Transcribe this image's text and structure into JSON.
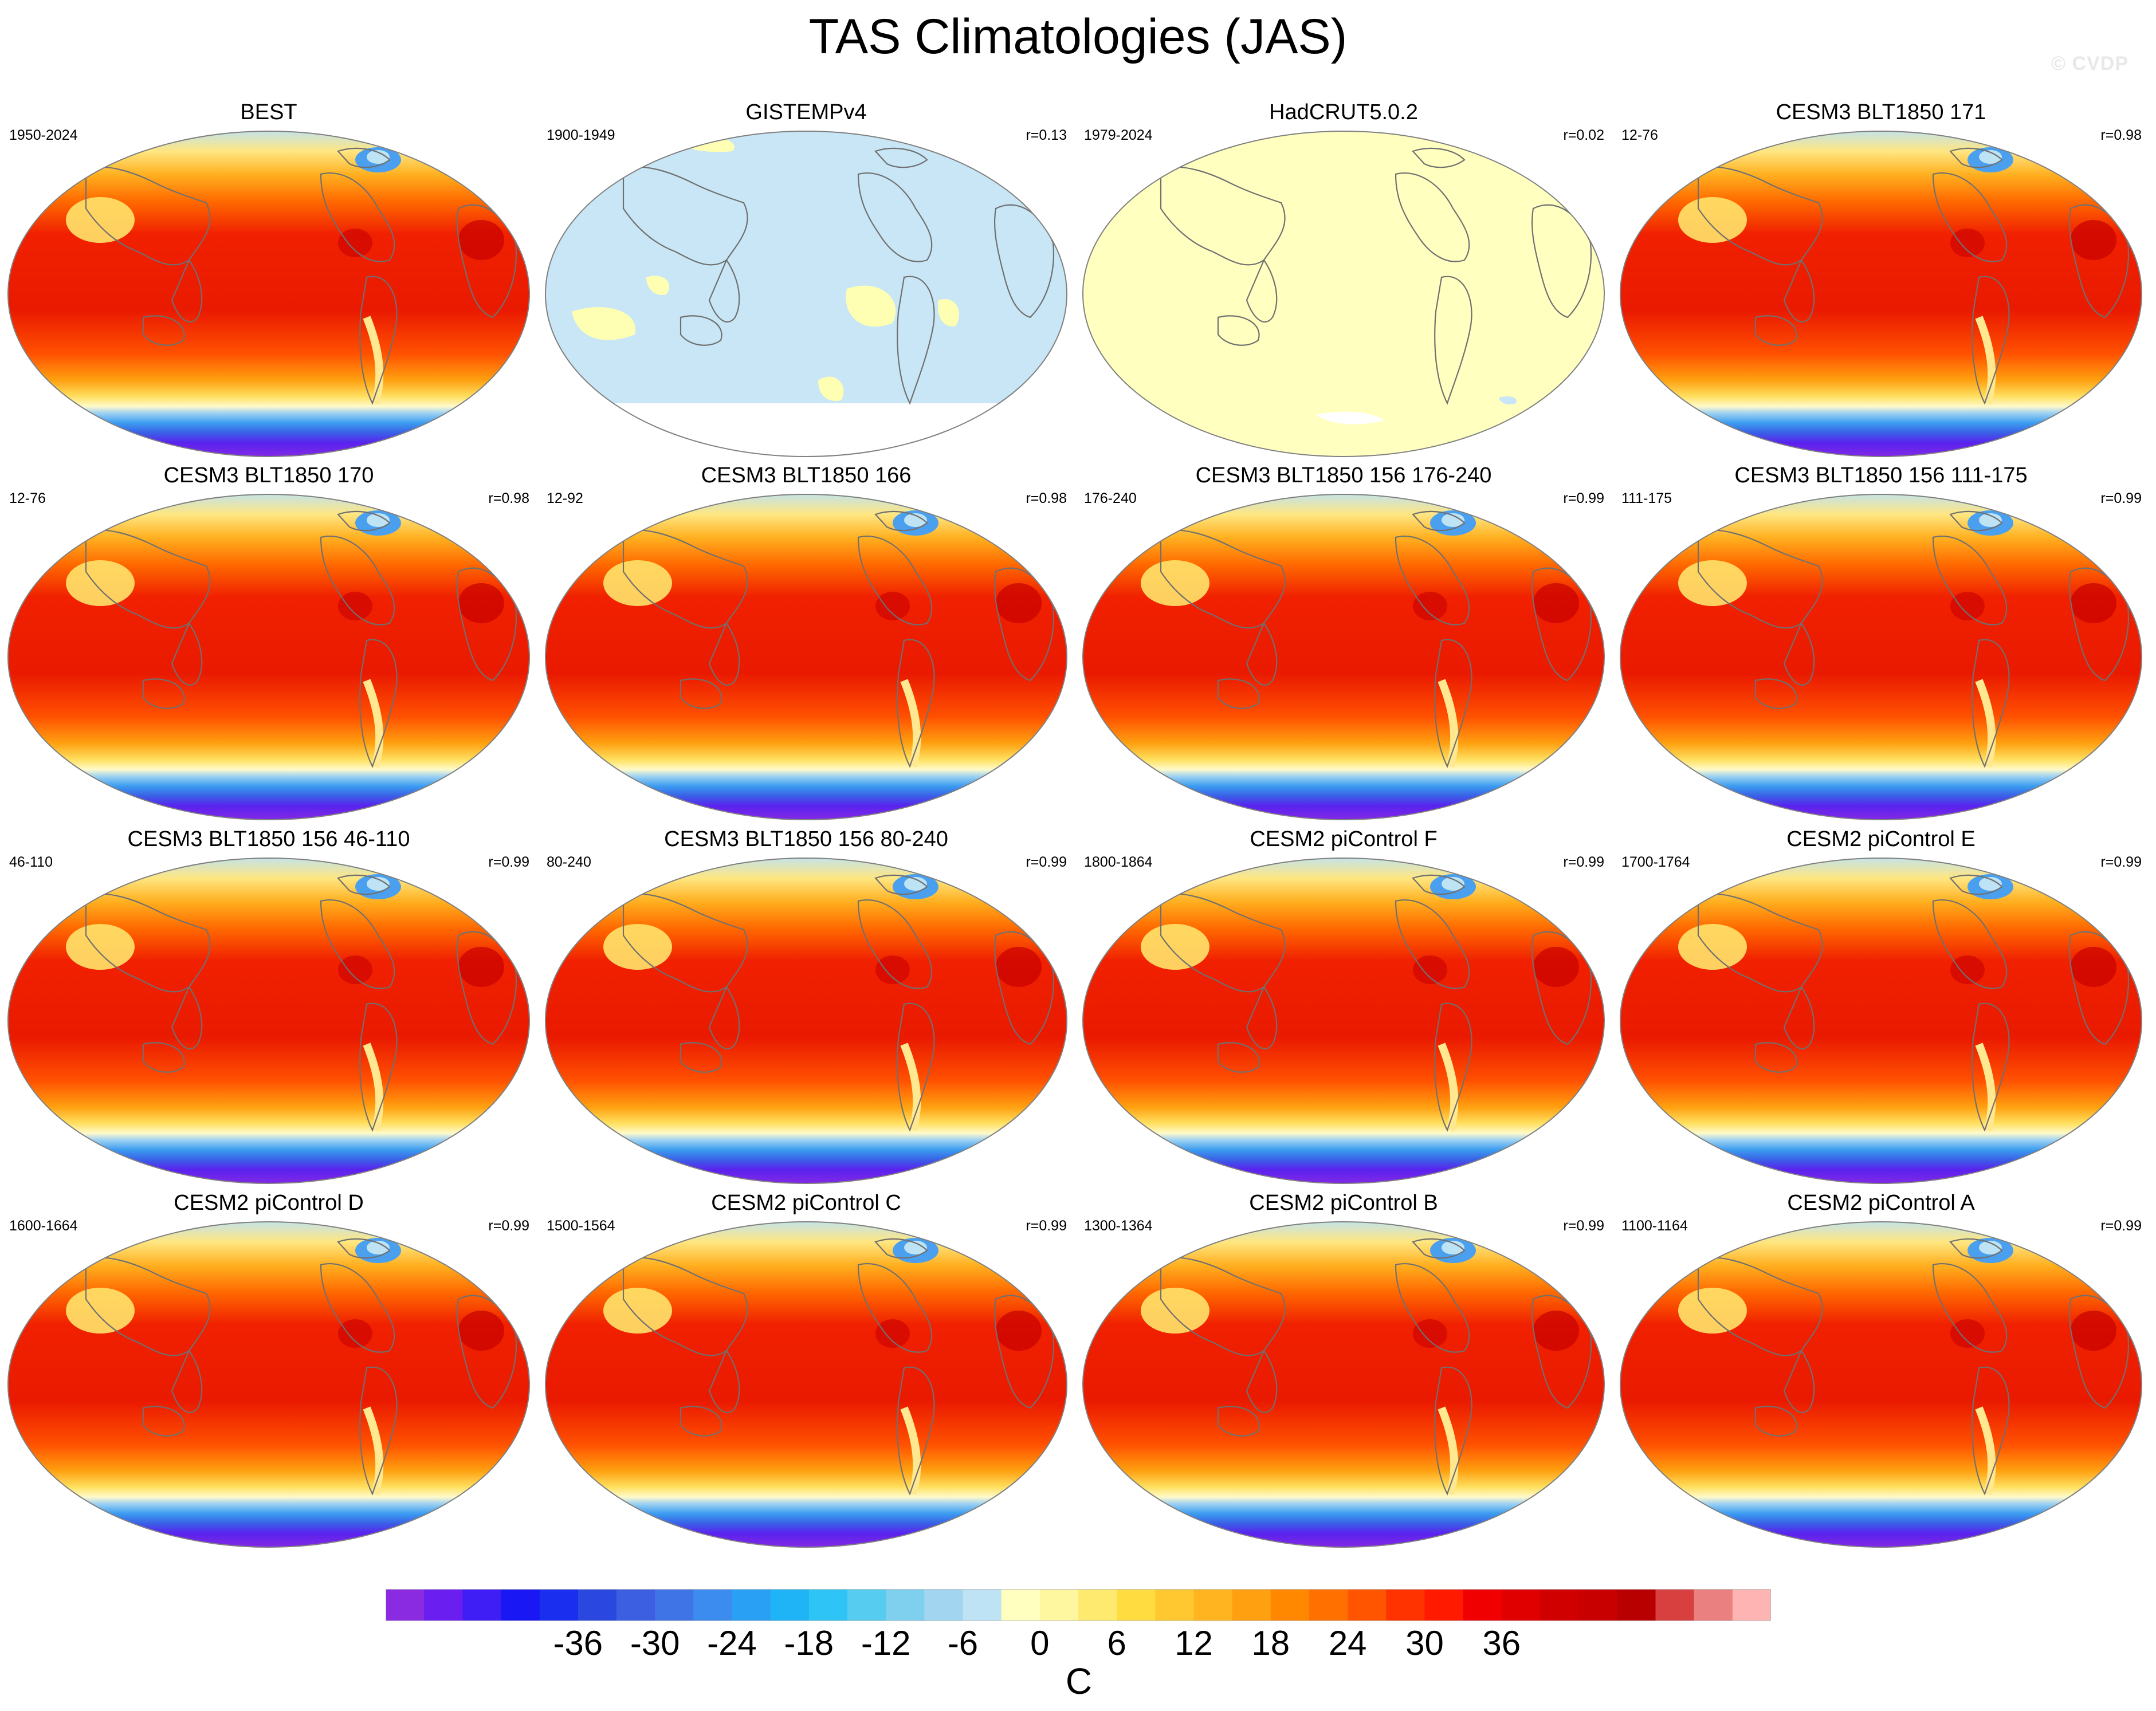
{
  "title": "TAS Climatologies (JAS)",
  "watermark": "© CVDP",
  "chart_data": [
    {
      "type": "heatmap",
      "title": "BEST",
      "years": "1950-2024",
      "corr": "",
      "pattern": "obs",
      "colors": "#dd0000"
    },
    {
      "type": "heatmap",
      "title": "GISTEMPv4",
      "years": "1900-1949",
      "corr": "r=0.13",
      "pattern": "gis"
    },
    {
      "type": "heatmap",
      "title": "HadCRUT5.0.2",
      "years": "1979-2024",
      "corr": "r=0.02",
      "pattern": "had"
    },
    {
      "type": "heatmap",
      "title": "CESM3 BLT1850 171",
      "years": "12-76",
      "corr": "r=0.98",
      "pattern": "model"
    },
    {
      "type": "heatmap",
      "title": "CESM3 BLT1850 170",
      "years": "12-76",
      "corr": "r=0.98",
      "pattern": "model"
    },
    {
      "type": "heatmap",
      "title": "CESM3 BLT1850 166",
      "years": "12-92",
      "corr": "r=0.98",
      "pattern": "model"
    },
    {
      "type": "heatmap",
      "title": "CESM3 BLT1850 156 176-240",
      "years": "176-240",
      "corr": "r=0.99",
      "pattern": "model"
    },
    {
      "type": "heatmap",
      "title": "CESM3 BLT1850 156 111-175",
      "years": "111-175",
      "corr": "r=0.99",
      "pattern": "model"
    },
    {
      "type": "heatmap",
      "title": "CESM3 BLT1850 156 46-110",
      "years": "46-110",
      "corr": "r=0.99",
      "pattern": "model"
    },
    {
      "type": "heatmap",
      "title": "CESM3 BLT1850 156 80-240",
      "years": "80-240",
      "corr": "r=0.99",
      "pattern": "model"
    },
    {
      "type": "heatmap",
      "title": "CESM2 piControl F",
      "years": "1800-1864",
      "corr": "r=0.99",
      "pattern": "model"
    },
    {
      "type": "heatmap",
      "title": "CESM2 piControl E",
      "years": "1700-1764",
      "corr": "r=0.99",
      "pattern": "model"
    },
    {
      "type": "heatmap",
      "title": "CESM2 piControl D",
      "years": "1600-1664",
      "corr": "r=0.99",
      "pattern": "model"
    },
    {
      "type": "heatmap",
      "title": "CESM2 piControl C",
      "years": "1500-1564",
      "corr": "r=0.99",
      "pattern": "model"
    },
    {
      "type": "heatmap",
      "title": "CESM2 piControl B",
      "years": "1300-1364",
      "corr": "r=0.99",
      "pattern": "model"
    },
    {
      "type": "heatmap",
      "title": "CESM2 piControl A",
      "years": "1100-1164",
      "corr": "r=0.99",
      "pattern": "model"
    }
  ],
  "colorbar": {
    "unit": "C",
    "tick_labels": [
      "-36",
      "-30",
      "-24",
      "-18",
      "-12",
      "-6",
      "0",
      "6",
      "12",
      "18",
      "24",
      "30",
      "36"
    ],
    "colors": [
      "#8a2be2",
      "#6a1ef0",
      "#3f1df5",
      "#1a17f5",
      "#1a2ef0",
      "#2a48e0",
      "#3b5fe0",
      "#3f74e6",
      "#3c8cf0",
      "#2aa0f5",
      "#1fb4f5",
      "#2ec4f5",
      "#55ccf0",
      "#7fcfee",
      "#a2d6f0",
      "#bde3f5",
      "#ffffc0",
      "#fff7a0",
      "#ffea70",
      "#ffdc40",
      "#ffc830",
      "#ffb420",
      "#ffa010",
      "#ff8800",
      "#ff7000",
      "#ff5500",
      "#ff3300",
      "#ff1a00",
      "#f00000",
      "#e00000",
      "#d00000",
      "#c80000",
      "#b80000",
      "#d84040",
      "#ea8080",
      "#ffb4b4"
    ]
  }
}
